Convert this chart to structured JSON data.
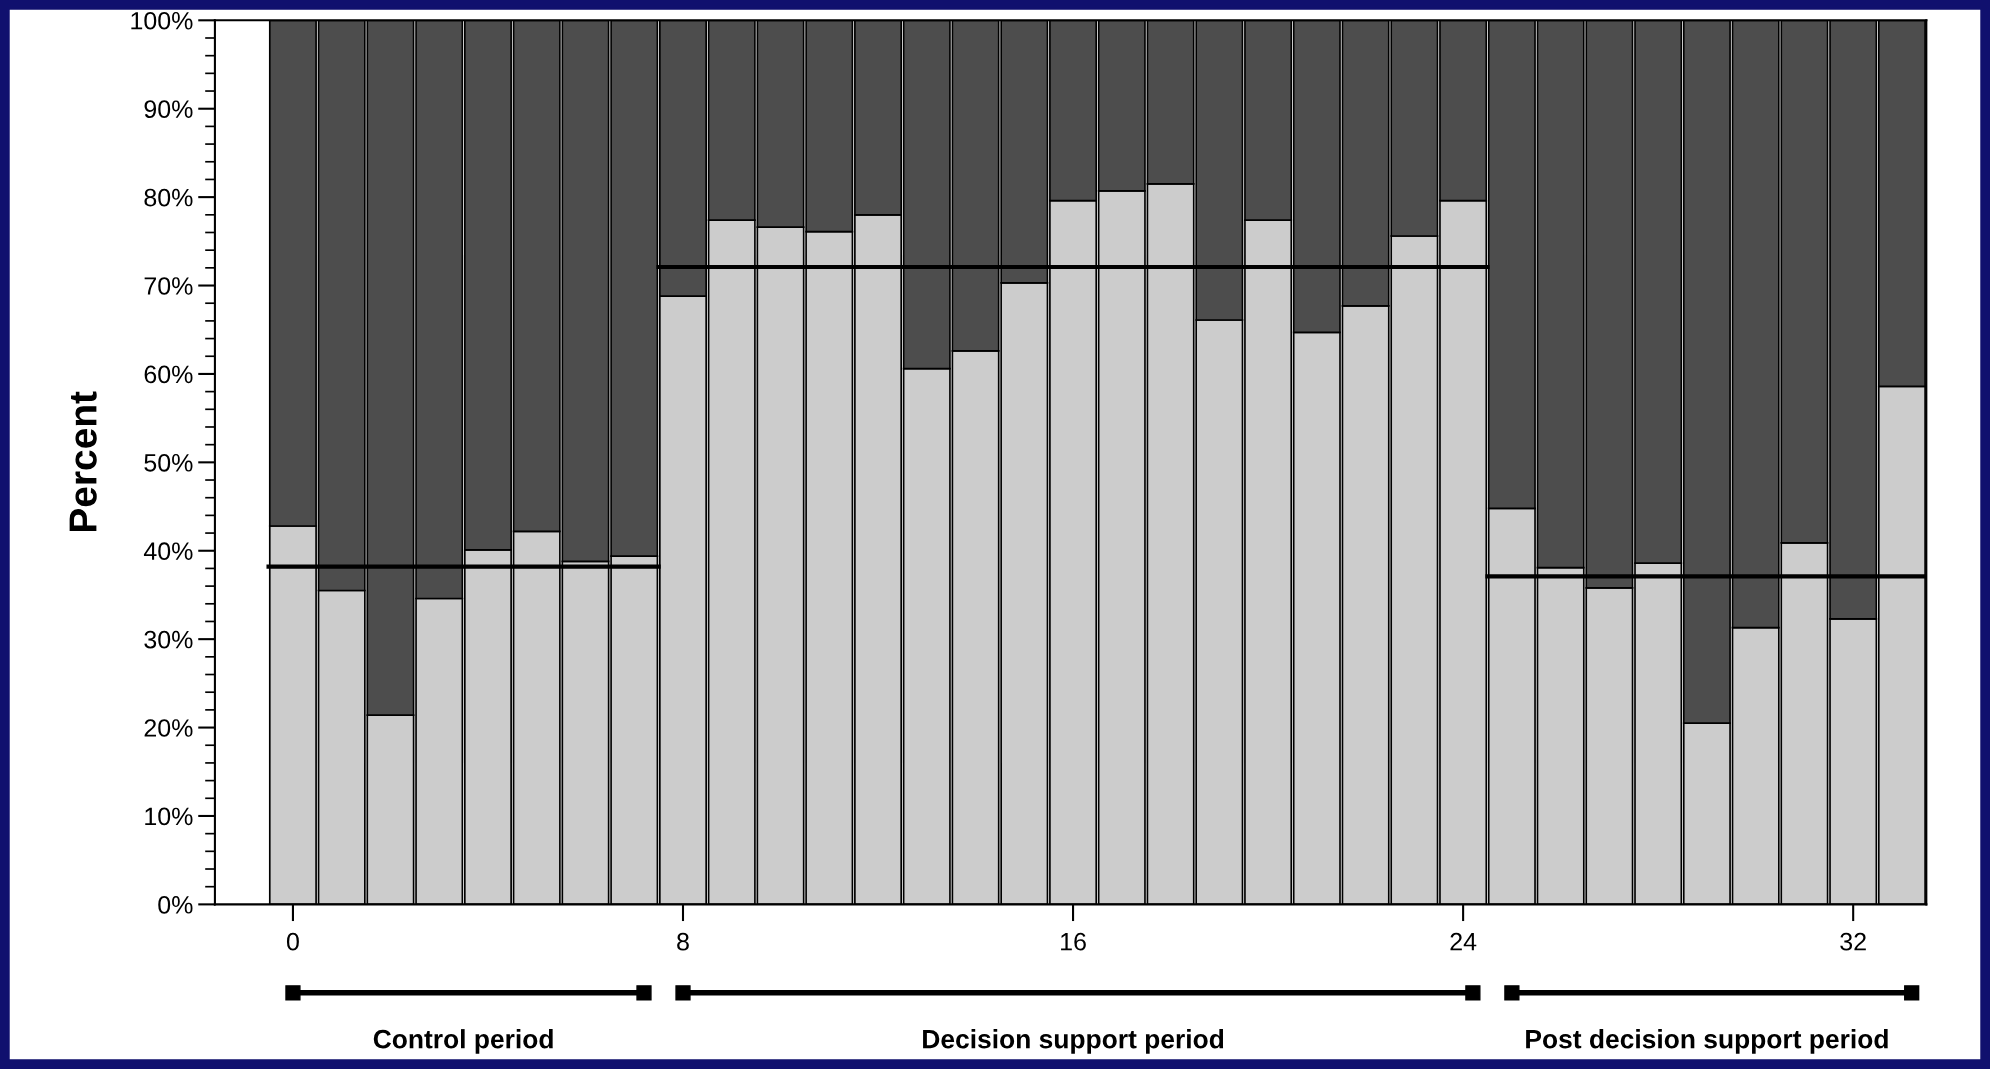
{
  "chart_data": {
    "type": "bar",
    "stacked": true,
    "ylabel": "Percent",
    "x": [
      0,
      1,
      2,
      3,
      4,
      5,
      6,
      7,
      8,
      9,
      10,
      11,
      12,
      13,
      14,
      15,
      16,
      17,
      18,
      19,
      20,
      21,
      22,
      23,
      24,
      25,
      26,
      27,
      28,
      29,
      30,
      31,
      32,
      33
    ],
    "series": [
      {
        "color": "#cccccc",
        "values": [
          42.8,
          35.5,
          21.4,
          34.6,
          40.1,
          42.2,
          38.8,
          39.4,
          68.8,
          77.4,
          76.6,
          76.1,
          78.0,
          60.6,
          62.6,
          70.3,
          79.6,
          80.7,
          81.5,
          66.1,
          77.4,
          64.7,
          67.7,
          75.6,
          79.6,
          44.8,
          38.1,
          35.8,
          38.6,
          20.5,
          31.3,
          40.9,
          32.3,
          58.6
        ]
      },
      {
        "color": "#4d4d4d",
        "values": [
          57.2,
          64.5,
          78.6,
          65.4,
          59.9,
          57.8,
          61.2,
          60.6,
          31.2,
          22.6,
          23.4,
          23.9,
          22.0,
          39.4,
          37.4,
          29.7,
          20.4,
          19.3,
          18.5,
          33.9,
          22.6,
          35.3,
          32.3,
          24.4,
          20.4,
          55.2,
          61.9,
          64.2,
          61.4,
          79.5,
          68.7,
          59.1,
          67.7,
          41.4
        ]
      },
      {
        "type": "line",
        "color": "#000000",
        "x": [
          -0.5,
          7.5
        ],
        "values": [
          38.2,
          38.2
        ]
      },
      {
        "type": "line",
        "color": "#000000",
        "x": [
          7.5,
          24.5
        ],
        "values": [
          72.1,
          72.1
        ]
      },
      {
        "type": "line",
        "color": "#000000",
        "x": [
          24.5,
          33.5
        ],
        "values": [
          37.1,
          37.1
        ]
      }
    ],
    "xlim": [
      -1.6,
      33.5
    ],
    "xticks": [
      0,
      8,
      16,
      24,
      32
    ],
    "ylim": [
      0,
      100
    ],
    "yticks": [
      {
        "value": 0,
        "label": "0%"
      },
      {
        "value": 10,
        "label": "10%"
      },
      {
        "value": 20,
        "label": "20%"
      },
      {
        "value": 30,
        "label": "30%"
      },
      {
        "value": 40,
        "label": "40%"
      },
      {
        "value": 50,
        "label": "50%"
      },
      {
        "value": 60,
        "label": "60%"
      },
      {
        "value": 70,
        "label": "70%"
      },
      {
        "value": 80,
        "label": "80%"
      },
      {
        "value": 90,
        "label": "90%"
      },
      {
        "value": 100,
        "label": "100%"
      }
    ],
    "grid": false,
    "legend": false,
    "annotations": [
      "Control period",
      "Decision support period",
      "Post decision support period"
    ]
  }
}
